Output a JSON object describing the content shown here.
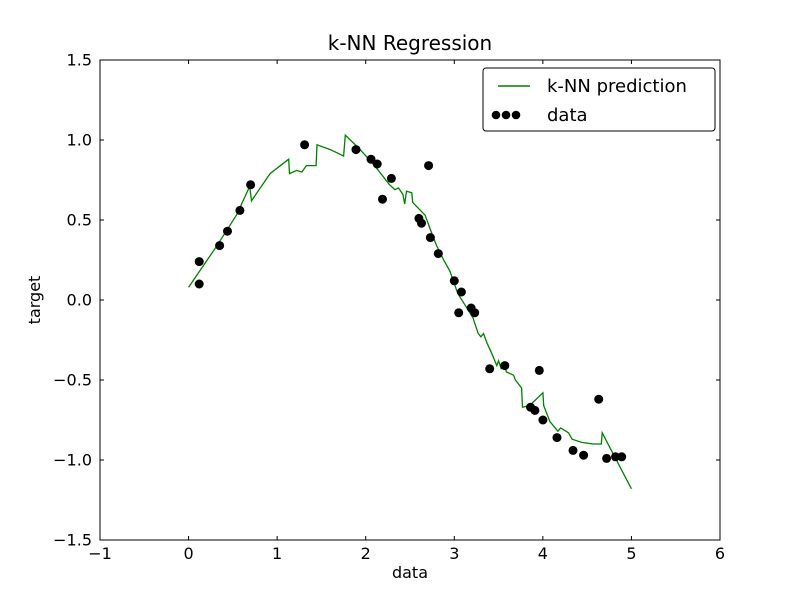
{
  "chart_data": {
    "type": "line+scatter",
    "title": "k-NN Regression",
    "xlabel": "data",
    "ylabel": "target",
    "xlim": [
      -1,
      6
    ],
    "ylim": [
      -1.5,
      1.5
    ],
    "grid": false,
    "x_tick_values": [
      -1,
      0,
      1,
      2,
      3,
      4,
      5,
      6
    ],
    "x_tick_labels": [
      "−1",
      "0",
      "1",
      "2",
      "3",
      "4",
      "5",
      "6"
    ],
    "y_tick_values": [
      1.5,
      1.0,
      0.5,
      0.0,
      -0.5,
      -1.0,
      -1.5
    ],
    "y_tick_labels": [
      "1.5",
      "1.0",
      "0.5",
      "0.0",
      "−0.5",
      "−1.0",
      "−1.5"
    ],
    "legend": {
      "position": "upper right",
      "entries": [
        {
          "label": "k-NN prediction",
          "type": "line",
          "color": "#008000"
        },
        {
          "label": "data",
          "type": "scatter",
          "color": "#000000"
        }
      ]
    },
    "series": [
      {
        "name": "k-NN prediction",
        "type": "line",
        "color": "#008000",
        "points": [
          [
            0.0,
            0.08
          ],
          [
            0.31,
            0.33
          ],
          [
            0.54,
            0.53
          ],
          [
            0.69,
            0.71
          ],
          [
            0.71,
            0.62
          ],
          [
            0.92,
            0.79
          ],
          [
            1.13,
            0.88
          ],
          [
            1.14,
            0.79
          ],
          [
            1.22,
            0.81
          ],
          [
            1.28,
            0.8
          ],
          [
            1.33,
            0.84
          ],
          [
            1.44,
            0.84
          ],
          [
            1.45,
            0.97
          ],
          [
            1.6,
            0.94
          ],
          [
            1.75,
            0.9
          ],
          [
            1.77,
            1.03
          ],
          [
            1.92,
            0.95
          ],
          [
            2.1,
            0.84
          ],
          [
            2.27,
            0.72
          ],
          [
            2.33,
            0.69
          ],
          [
            2.37,
            0.7
          ],
          [
            2.42,
            0.66
          ],
          [
            2.44,
            0.6
          ],
          [
            2.46,
            0.68
          ],
          [
            2.52,
            0.67
          ],
          [
            2.53,
            0.61
          ],
          [
            2.67,
            0.53
          ],
          [
            2.73,
            0.44
          ],
          [
            2.8,
            0.34
          ],
          [
            2.88,
            0.25
          ],
          [
            2.95,
            0.18
          ],
          [
            3.04,
            0.04
          ],
          [
            3.12,
            -0.03
          ],
          [
            3.21,
            -0.11
          ],
          [
            3.27,
            -0.21
          ],
          [
            3.3,
            -0.23
          ],
          [
            3.33,
            -0.21
          ],
          [
            3.37,
            -0.27
          ],
          [
            3.42,
            -0.33
          ],
          [
            3.48,
            -0.41
          ],
          [
            3.5,
            -0.38
          ],
          [
            3.53,
            -0.43
          ],
          [
            3.57,
            -0.42
          ],
          [
            3.59,
            -0.45
          ],
          [
            3.67,
            -0.47
          ],
          [
            3.69,
            -0.5
          ],
          [
            3.76,
            -0.55
          ],
          [
            3.77,
            -0.67
          ],
          [
            3.85,
            -0.66
          ],
          [
            4.0,
            -0.58
          ],
          [
            4.01,
            -0.66
          ],
          [
            4.08,
            -0.76
          ],
          [
            4.17,
            -0.82
          ],
          [
            4.2,
            -0.8
          ],
          [
            4.29,
            -0.83
          ],
          [
            4.33,
            -0.87
          ],
          [
            4.44,
            -0.89
          ],
          [
            4.57,
            -0.9
          ],
          [
            4.66,
            -0.9
          ],
          [
            4.67,
            -0.83
          ],
          [
            5.0,
            -1.18
          ]
        ]
      },
      {
        "name": "data",
        "type": "scatter",
        "color": "#000000",
        "points": [
          [
            0.12,
            0.24
          ],
          [
            0.12,
            0.1
          ],
          [
            0.35,
            0.34
          ],
          [
            0.44,
            0.43
          ],
          [
            0.58,
            0.56
          ],
          [
            0.7,
            0.72
          ],
          [
            1.31,
            0.97
          ],
          [
            1.89,
            0.94
          ],
          [
            2.06,
            0.88
          ],
          [
            2.13,
            0.85
          ],
          [
            2.19,
            0.63
          ],
          [
            2.29,
            0.76
          ],
          [
            2.6,
            0.51
          ],
          [
            2.63,
            0.48
          ],
          [
            2.71,
            0.84
          ],
          [
            2.73,
            0.39
          ],
          [
            2.82,
            0.29
          ],
          [
            3.0,
            0.12
          ],
          [
            3.08,
            0.05
          ],
          [
            3.05,
            -0.08
          ],
          [
            3.19,
            -0.05
          ],
          [
            3.23,
            -0.08
          ],
          [
            3.4,
            -0.43
          ],
          [
            3.57,
            -0.41
          ],
          [
            3.86,
            -0.67
          ],
          [
            3.91,
            -0.69
          ],
          [
            3.96,
            -0.44
          ],
          [
            4.0,
            -0.75
          ],
          [
            4.16,
            -0.86
          ],
          [
            4.34,
            -0.94
          ],
          [
            4.46,
            -0.97
          ],
          [
            4.63,
            -0.62
          ],
          [
            4.72,
            -0.99
          ],
          [
            4.82,
            -0.98
          ],
          [
            4.89,
            -0.98
          ]
        ]
      }
    ],
    "colors": {
      "line": "#008000",
      "marker": "#000000",
      "axes": "#000000",
      "background": "#ffffff"
    }
  }
}
